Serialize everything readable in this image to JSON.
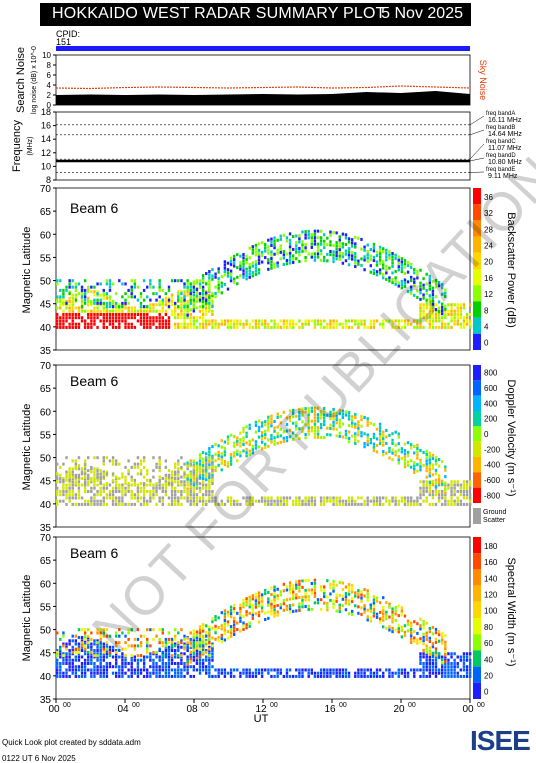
{
  "header": {
    "title": "HOKKAIDO WEST RADAR SUMMARY PLOT",
    "date": "5 Nov 2025"
  },
  "cpid": {
    "label": "CPID:",
    "value": "151"
  },
  "footer": {
    "line1": "Quick Look plot created by sddata.adm",
    "line2": "0122 UT  6 Nov 2025"
  },
  "logo": {
    "text": "ISEE"
  },
  "watermark": "NOT FOR PUBLICATION",
  "colors": {
    "header_bg": "#000000",
    "cpid_bar": "#1a1aff",
    "noise_sky": "#e04010",
    "watermark": "#888888"
  },
  "chart_data": [
    {
      "type": "area",
      "panel": "search-noise",
      "ylabel": "Search Noise",
      "ylabel_sub": "log noise (dB) x 10^-0",
      "right_label": "Sky Noise",
      "ylim": [
        0,
        10
      ],
      "yticks": [
        0,
        2,
        4,
        6,
        8,
        10
      ],
      "x_hours": [
        0,
        2,
        4,
        6,
        8,
        10,
        12,
        14,
        16,
        18,
        20,
        22,
        24
      ],
      "search_noise": [
        2.0,
        2.1,
        2.0,
        2.1,
        2.0,
        2.1,
        2.2,
        2.1,
        2.2,
        2.6,
        2.4,
        2.8,
        2.2
      ],
      "sky_noise": [
        3.4,
        3.3,
        3.5,
        3.6,
        3.5,
        3.4,
        3.5,
        3.6,
        3.4,
        3.5,
        3.8,
        3.6,
        3.4
      ]
    },
    {
      "type": "line",
      "panel": "frequency",
      "ylabel": "Frequency",
      "yunit": "(MHz)",
      "ylim": [
        8,
        18
      ],
      "yticks": [
        8,
        10,
        12,
        14,
        16,
        18
      ],
      "bands": [
        {
          "name": "freq bandA",
          "value": "16.11 MHz"
        },
        {
          "name": "freq bandB",
          "value": "14.64 MHz"
        },
        {
          "name": "freq bandC",
          "value": "11.07 MHz"
        },
        {
          "name": "freq bandD",
          "value": "10.80 MHz"
        },
        {
          "name": "freq bandE",
          "value": "9.11 MHz"
        }
      ],
      "operating_frequency": 10.8
    },
    {
      "type": "heatmap",
      "panel": "backscatter-power",
      "title": "Beam  6",
      "ylabel": "Magnetic Latitude",
      "ylim": [
        35,
        70
      ],
      "yticks": [
        35,
        40,
        45,
        50,
        55,
        60,
        65,
        70
      ],
      "colorbar_label": "Backscatter Power (dB)",
      "colorbar_ticks": [
        "36",
        "32",
        "28",
        "24",
        "20",
        "16",
        "12",
        "8",
        "4",
        "0"
      ]
    },
    {
      "type": "heatmap",
      "panel": "doppler-velocity",
      "title": "Beam  6",
      "ylabel": "Magnetic Latitude",
      "ylim": [
        35,
        70
      ],
      "yticks": [
        35,
        40,
        45,
        50,
        55,
        60,
        65,
        70
      ],
      "colorbar_label": "Doppler Velocity (m s⁻¹)",
      "colorbar_ticks": [
        "800",
        "600",
        "400",
        "200",
        "0",
        "-200",
        "-400",
        "-600",
        "-800"
      ],
      "ground_scatter_label": "Ground Scatter"
    },
    {
      "type": "heatmap",
      "panel": "spectral-width",
      "title": "Beam  6",
      "ylabel": "Magnetic Latitude",
      "ylim": [
        35,
        70
      ],
      "yticks": [
        35,
        40,
        45,
        50,
        55,
        60,
        65,
        70
      ],
      "colorbar_label": "Spectral Width (m s⁻¹)",
      "colorbar_ticks": [
        "180",
        "160",
        "140",
        "120",
        "100",
        "80",
        "60",
        "40",
        "20",
        "0"
      ],
      "xlabel": "UT",
      "xticks": [
        "00",
        "04",
        "08",
        "12",
        "16",
        "20",
        "00"
      ],
      "xtick_sup": "00"
    }
  ]
}
